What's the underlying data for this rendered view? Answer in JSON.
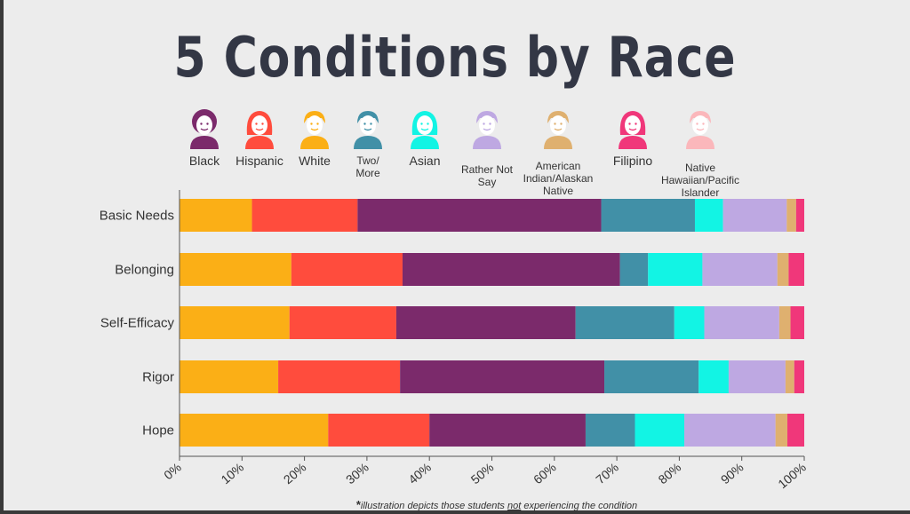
{
  "title": "5 Conditions by Race",
  "legend": [
    {
      "label": "Black",
      "color": "#7b2a6b",
      "icon": "person-afro-icon"
    },
    {
      "label": "Hispanic",
      "color": "#ff4c3d",
      "icon": "person-long-hair-icon"
    },
    {
      "label": "White",
      "color": "#fbaf16",
      "icon": "person-short-hair-icon"
    },
    {
      "label": "Two/ More",
      "color": "#4190a7",
      "icon": "person-short-hair-icon"
    },
    {
      "label": "Asian",
      "color": "#12f4e4",
      "icon": "person-long-hair-icon"
    },
    {
      "label": "Rather Not Say",
      "color": "#bea8e2",
      "icon": "person-short-hair-icon"
    },
    {
      "label": "American Indian/Alaskan Native",
      "color": "#dfb06f",
      "icon": "person-short-hair-icon"
    },
    {
      "label": "Filipino",
      "color": "#f0377a",
      "icon": "person-long-hair-icon"
    },
    {
      "label": "Native Hawaiian/Pacific Islander",
      "color": "#fbb7bb",
      "icon": "person-short-hair-icon"
    }
  ],
  "footnote": {
    "star": "*",
    "part1": "illustration depicts those students ",
    "emph": "not",
    "part2": " experiencing  the condition"
  },
  "chart_data": {
    "type": "bar",
    "orientation": "horizontal",
    "stacked": true,
    "categories": [
      "Basic Needs",
      "Belonging",
      "Self-Efficacy",
      "Rigor",
      "Hope"
    ],
    "series": [
      {
        "name": "White",
        "color": "#fbaf16",
        "values": [
          11.6,
          17.9,
          17.6,
          15.8,
          23.8
        ]
      },
      {
        "name": "Hispanic",
        "color": "#ff4c3d",
        "values": [
          16.9,
          17.8,
          17.1,
          19.5,
          16.2
        ]
      },
      {
        "name": "Black",
        "color": "#7b2a6b",
        "values": [
          39.0,
          34.8,
          28.7,
          32.7,
          25.0
        ]
      },
      {
        "name": "Two/ More",
        "color": "#4190a7",
        "values": [
          15.0,
          4.5,
          15.8,
          15.1,
          7.9
        ]
      },
      {
        "name": "Asian",
        "color": "#12f4e4",
        "values": [
          4.5,
          8.7,
          4.8,
          4.8,
          7.9
        ]
      },
      {
        "name": "Rather Not Say",
        "color": "#bea8e2",
        "values": [
          10.2,
          12.0,
          12.0,
          9.1,
          14.6
        ]
      },
      {
        "name": "American Indian/Alaskan Native",
        "color": "#dfb06f",
        "values": [
          1.5,
          1.8,
          1.8,
          1.4,
          1.9
        ]
      },
      {
        "name": "Filipino",
        "color": "#f0377a",
        "values": [
          1.3,
          2.5,
          2.2,
          1.6,
          2.7
        ]
      }
    ],
    "xlim": [
      0,
      100
    ],
    "xticks": [
      "0%",
      "10%",
      "20%",
      "30%",
      "40%",
      "50%",
      "60%",
      "70%",
      "80%",
      "90%",
      "100%"
    ],
    "grid": false,
    "legend_position": "top"
  }
}
